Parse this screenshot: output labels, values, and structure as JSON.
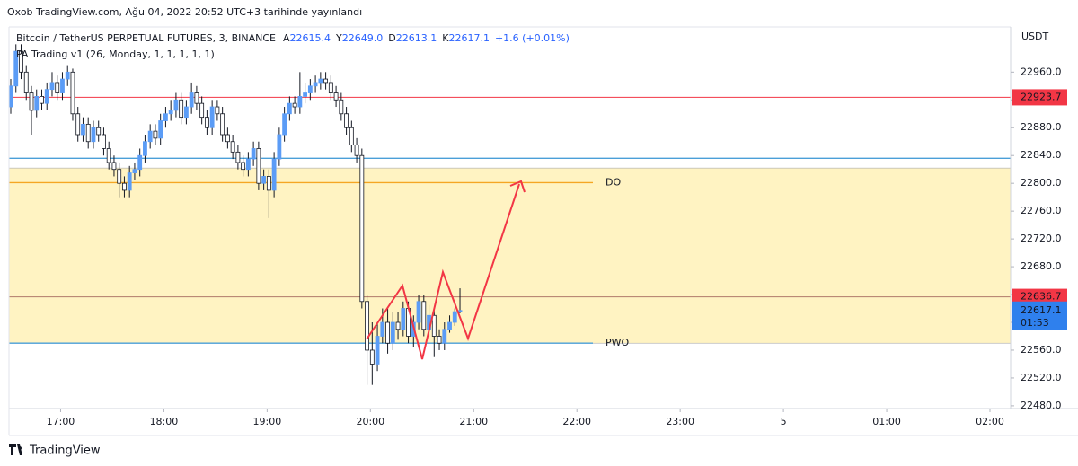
{
  "header": {
    "published": "Oxob TradingView.com, Ağu 04, 2022 20:52 UTC+3 tarihinde yayınlandı"
  },
  "chart_data": {
    "type": "candlestick",
    "title": "Bitcoin / TetherUS PERPETUAL FUTURES, 3, BINANCE",
    "ohlc_legend": [
      {
        "key": "A",
        "text": "22615.4"
      },
      {
        "key": "Y",
        "text": "22649.0"
      },
      {
        "key": "D",
        "text": "22613.1"
      },
      {
        "key": "K",
        "text": "22617.1"
      }
    ],
    "change": "+1.6 (+0.01%)",
    "indicator": "PA Trading v1 (26, Monday, 1, 1, 1, 1, 1)",
    "currency": "USDT",
    "up_color": "#5b9cf6",
    "down_color": "#ffffff",
    "x": [
      990,
      993,
      996,
      999,
      1002,
      1005,
      1008,
      1011,
      1014,
      1017,
      1020,
      1023,
      1026,
      1029,
      1032,
      1035,
      1038,
      1041,
      1044,
      1047,
      1050,
      1053,
      1056,
      1059,
      1062,
      1065,
      1068,
      1071,
      1074,
      1077,
      1080,
      1083,
      1086,
      1089,
      1092,
      1095,
      1098,
      1101,
      1104,
      1107,
      1110,
      1113,
      1116,
      1119,
      1122,
      1125,
      1128,
      1131,
      1134,
      1137,
      1140,
      1143,
      1146,
      1149,
      1152,
      1155,
      1158,
      1161,
      1164,
      1167,
      1170,
      1173,
      1176,
      1179,
      1182,
      1185,
      1188,
      1191,
      1194,
      1197,
      1200,
      1203,
      1206,
      1209,
      1212,
      1215,
      1218,
      1221,
      1224,
      1227,
      1230,
      1233,
      1236,
      1239,
      1242,
      1245,
      1248,
      1251
    ],
    "open": [
      22910,
      22940,
      22990,
      22960,
      22930,
      22905,
      22925,
      22915,
      22935,
      22945,
      22930,
      22950,
      22960,
      22900,
      22870,
      22885,
      22860,
      22880,
      22870,
      22850,
      22830,
      22820,
      22800,
      22790,
      22815,
      22820,
      22840,
      22860,
      22875,
      22865,
      22890,
      22900,
      22905,
      22920,
      22895,
      22910,
      22930,
      22915,
      22895,
      22880,
      22910,
      22900,
      22870,
      22860,
      22845,
      22830,
      22820,
      22835,
      22850,
      22800,
      22810,
      22790,
      22835,
      22870,
      22900,
      22915,
      22910,
      22925,
      22930,
      22940,
      22945,
      22950,
      22945,
      22930,
      22920,
      22900,
      22880,
      22855,
      22840,
      22630,
      22560,
      22540,
      22580,
      22600,
      22570,
      22600,
      22590,
      22620,
      22580,
      22600,
      22630,
      22590,
      22610,
      22580,
      22570,
      22590,
      22600,
      22615.4
    ],
    "high": [
      22950,
      23000,
      23000,
      22970,
      22940,
      22935,
      22935,
      22945,
      22960,
      22955,
      22960,
      22970,
      22965,
      22910,
      22895,
      22895,
      22890,
      22890,
      22880,
      22860,
      22840,
      22830,
      22810,
      22825,
      22830,
      22850,
      22870,
      22885,
      22885,
      22900,
      22910,
      22920,
      22930,
      22930,
      22920,
      22945,
      22940,
      22925,
      22905,
      22920,
      22920,
      22910,
      22880,
      22870,
      22855,
      22840,
      22845,
      22860,
      22860,
      22820,
      22820,
      22845,
      22880,
      22910,
      22925,
      22925,
      22960,
      22945,
      22950,
      22955,
      22960,
      22960,
      22955,
      22940,
      22930,
      22910,
      22890,
      22865,
      22850,
      22640,
      22600,
      22600,
      22620,
      22620,
      22615,
      22615,
      22630,
      22630,
      22610,
      22640,
      22640,
      22625,
      22620,
      22590,
      22600,
      22610,
      22620,
      22649
    ],
    "low": [
      22900,
      22930,
      22950,
      22920,
      22870,
      22895,
      22905,
      22905,
      22925,
      22920,
      22920,
      22940,
      22890,
      22860,
      22860,
      22850,
      22850,
      22860,
      22840,
      22820,
      22810,
      22780,
      22780,
      22780,
      22805,
      22810,
      22830,
      22850,
      22855,
      22855,
      22880,
      22890,
      22895,
      22885,
      22885,
      22900,
      22905,
      22885,
      22870,
      22870,
      22890,
      22860,
      22850,
      22835,
      22820,
      22810,
      22810,
      22825,
      22790,
      22790,
      22750,
      22780,
      22825,
      22860,
      22890,
      22900,
      22900,
      22915,
      22920,
      22930,
      22935,
      22935,
      22920,
      22910,
      22890,
      22870,
      22845,
      22830,
      22620,
      22510,
      22510,
      22530,
      22570,
      22555,
      22560,
      22575,
      22580,
      22570,
      22565,
      22590,
      22580,
      22580,
      22550,
      22560,
      22560,
      22585,
      22595,
      22613.1
    ],
    "close": [
      22940,
      22990,
      22960,
      22930,
      22905,
      22925,
      22915,
      22935,
      22945,
      22930,
      22950,
      22960,
      22900,
      22870,
      22885,
      22860,
      22880,
      22870,
      22850,
      22830,
      22820,
      22800,
      22790,
      22815,
      22820,
      22840,
      22860,
      22875,
      22865,
      22890,
      22900,
      22905,
      22920,
      22895,
      22910,
      22930,
      22915,
      22895,
      22880,
      22910,
      22900,
      22870,
      22860,
      22845,
      22830,
      22820,
      22835,
      22850,
      22800,
      22810,
      22790,
      22835,
      22870,
      22900,
      22915,
      22910,
      22925,
      22930,
      22940,
      22945,
      22950,
      22945,
      22930,
      22920,
      22900,
      22880,
      22855,
      22840,
      22630,
      22560,
      22540,
      22580,
      22600,
      22570,
      22600,
      22590,
      22620,
      22580,
      22600,
      22630,
      22590,
      22610,
      22580,
      22570,
      22590,
      22600,
      22615.4,
      22617.1
    ],
    "xlim": [
      990,
      1572
    ],
    "xticks": [
      {
        "value": 1020,
        "label": "17:00"
      },
      {
        "value": 1080,
        "label": "18:00"
      },
      {
        "value": 1140,
        "label": "19:00"
      },
      {
        "value": 1200,
        "label": "20:00"
      },
      {
        "value": 1260,
        "label": "21:00"
      },
      {
        "value": 1320,
        "label": "22:00"
      },
      {
        "value": 1380,
        "label": "23:00"
      },
      {
        "value": 1440,
        "label": "5"
      },
      {
        "value": 1500,
        "label": "01:00"
      },
      {
        "value": 1560,
        "label": "02:00"
      }
    ],
    "ylim": [
      22476,
      23025
    ],
    "yticks": [
      {
        "value": 22480,
        "label": "22480.0"
      },
      {
        "value": 22520,
        "label": "22520.0"
      },
      {
        "value": 22560,
        "label": "22560.0"
      },
      {
        "value": 22600,
        "label": "22600.0"
      },
      {
        "value": 22640,
        "label": "22640.0"
      },
      {
        "value": 22680,
        "label": "22680.0"
      },
      {
        "value": 22720,
        "label": "22720.0"
      },
      {
        "value": 22760,
        "label": "22760.0"
      },
      {
        "value": 22800,
        "label": "22800.0"
      },
      {
        "value": 22840,
        "label": "22840.0"
      },
      {
        "value": 22880,
        "label": "22880.0"
      },
      {
        "value": 22920,
        "label": "22920.0"
      },
      {
        "value": 22960,
        "label": "22960.0"
      }
    ],
    "zone": [
      22570,
      22822
    ],
    "levels": [
      {
        "name": "DO",
        "value": 22801,
        "color": "#f5a623"
      },
      {
        "name": "PWO",
        "value": 22570,
        "color": "#4a9fd8"
      }
    ],
    "lines": [
      {
        "value": 22836,
        "color": "#4a9fd8"
      }
    ],
    "price_marks": [
      {
        "value": 22923.7,
        "color": "#f23645"
      },
      {
        "value": 22636.7,
        "color": "#f23645"
      }
    ],
    "countdown": "01:53",
    "last_color": "#2f80ed"
  },
  "footer": {
    "logo": "TradingView"
  }
}
